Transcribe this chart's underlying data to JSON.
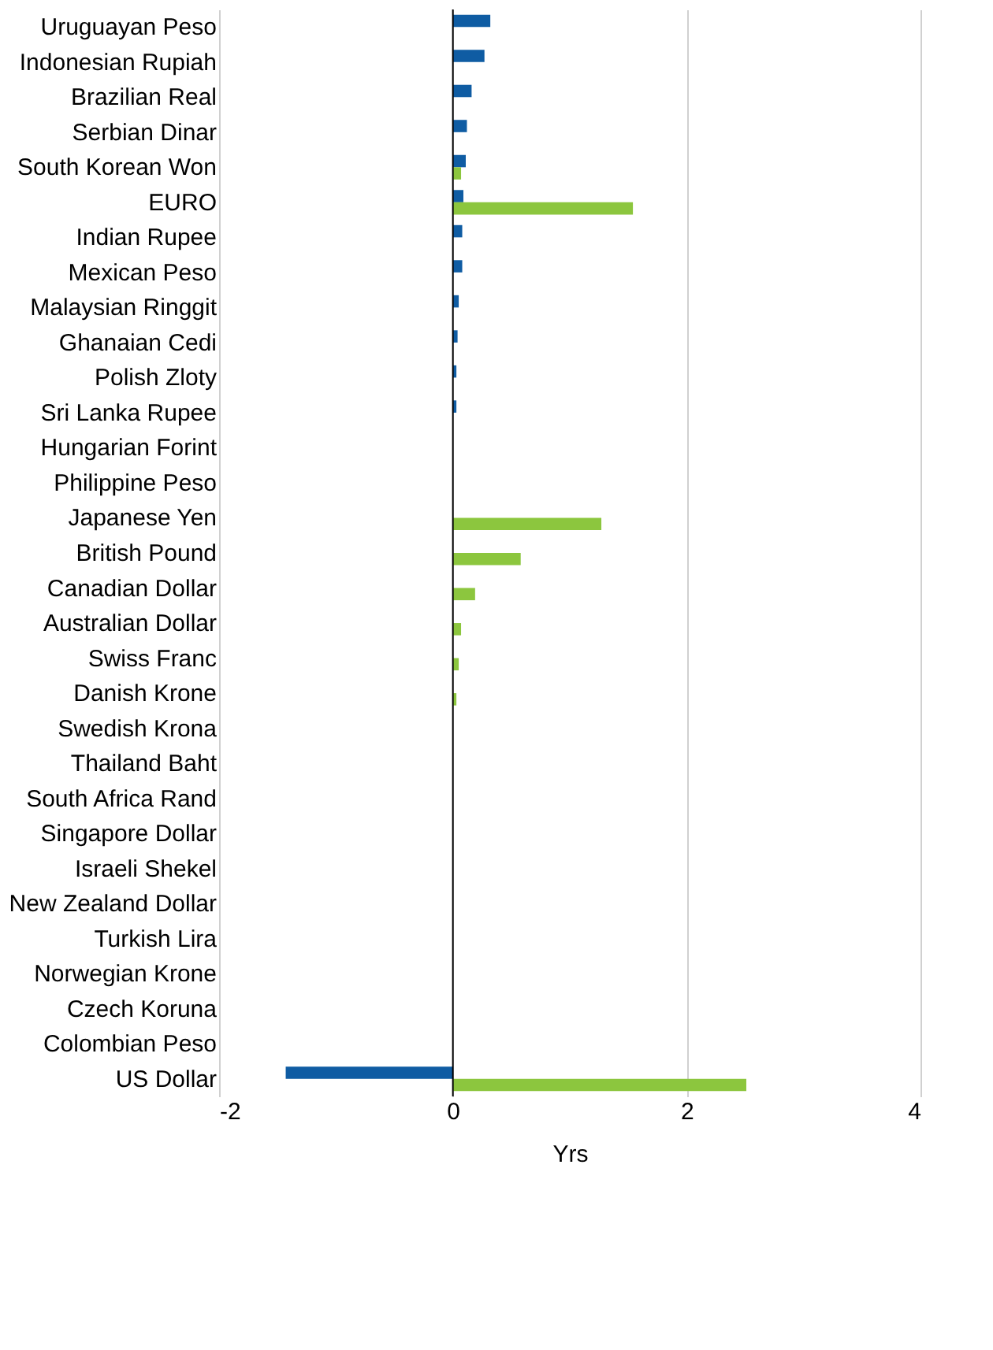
{
  "chart_data": {
    "type": "bar",
    "orientation": "horizontal",
    "xlabel": "Yrs",
    "categories": [
      "Uruguayan Peso",
      "Indonesian Rupiah",
      "Brazilian Real",
      "Serbian Dinar",
      "South Korean Won",
      "EURO",
      "Indian Rupee",
      "Mexican Peso",
      "Malaysian Ringgit",
      "Ghanaian Cedi",
      "Polish Zloty",
      "Sri Lanka Rupee",
      "Hungarian Forint",
      "Philippine Peso",
      "Japanese Yen",
      "British Pound",
      "Canadian Dollar",
      "Australian Dollar",
      "Swiss Franc",
      "Danish Krone",
      "Swedish Krona",
      "Thailand Baht",
      "South Africa Rand",
      "Singapore Dollar",
      "Israeli Shekel",
      "New Zealand Dollar",
      "Turkish Lira",
      "Norwegian Krone",
      "Czech Koruna",
      "Colombian Peso",
      "US Dollar"
    ],
    "series": [
      {
        "color": "#0f5ca3",
        "values": [
          0.32,
          0.27,
          0.16,
          0.12,
          0.11,
          0.09,
          0.08,
          0.08,
          0.05,
          0.04,
          0.03,
          0.03,
          null,
          null,
          null,
          null,
          null,
          null,
          null,
          null,
          null,
          null,
          null,
          null,
          null,
          null,
          null,
          null,
          null,
          null,
          -1.43
        ]
      },
      {
        "color": "#8cc63e",
        "values": [
          null,
          null,
          null,
          null,
          0.07,
          1.54,
          null,
          null,
          null,
          null,
          null,
          null,
          null,
          null,
          1.27,
          0.58,
          0.19,
          0.07,
          0.05,
          0.03,
          null,
          null,
          null,
          null,
          null,
          null,
          null,
          null,
          null,
          null,
          2.51
        ]
      }
    ],
    "xlim": [
      -2,
      4
    ],
    "xticks": [
      -2,
      0,
      2,
      4
    ],
    "grid": "x",
    "ref_lines": [
      {
        "axis": "x",
        "value": 0,
        "color": "#000000"
      }
    ]
  }
}
